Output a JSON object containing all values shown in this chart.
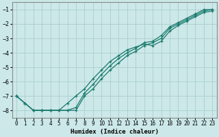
{
  "xlabel": "Humidex (Indice chaleur)",
  "bg_color": "#cce8e8",
  "grid_color": "#aacece",
  "line_color": "#1a7a6e",
  "xlim": [
    -0.5,
    23.5
  ],
  "ylim": [
    -8.5,
    -0.5
  ],
  "yticks": [
    -8,
    -7,
    -6,
    -5,
    -4,
    -3,
    -2,
    -1
  ],
  "xticks": [
    0,
    1,
    2,
    3,
    4,
    5,
    6,
    7,
    8,
    9,
    10,
    11,
    12,
    13,
    14,
    15,
    16,
    17,
    18,
    19,
    20,
    21,
    22,
    23
  ],
  "line1_x": [
    0,
    1,
    2,
    3,
    4,
    5,
    6,
    7,
    8,
    9,
    10,
    11,
    12,
    13,
    14,
    15,
    16,
    17,
    18,
    19,
    20,
    21,
    22,
    23
  ],
  "line1_y": [
    -7.0,
    -7.5,
    -8.0,
    -8.0,
    -8.0,
    -8.0,
    -8.0,
    -8.0,
    -7.0,
    -6.5,
    -5.8,
    -5.2,
    -4.7,
    -4.2,
    -3.9,
    -3.5,
    -3.3,
    -3.0,
    -2.3,
    -2.0,
    -1.7,
    -1.4,
    -1.1,
    -1.0
  ],
  "line2_x": [
    0,
    1,
    2,
    3,
    4,
    5,
    6,
    7,
    8,
    9,
    10,
    11,
    12,
    13,
    14,
    15,
    16,
    17,
    18,
    19,
    20,
    21,
    22,
    23
  ],
  "line2_y": [
    -7.0,
    -7.5,
    -8.0,
    -8.0,
    -8.0,
    -8.0,
    -8.0,
    -7.8,
    -6.8,
    -6.2,
    -5.5,
    -4.9,
    -4.4,
    -4.0,
    -3.7,
    -3.3,
    -3.2,
    -2.8,
    -2.2,
    -1.9,
    -1.6,
    -1.3,
    -1.0,
    -1.0
  ],
  "line3_x": [
    0,
    1,
    2,
    3,
    4,
    5,
    6,
    7,
    8,
    9,
    10,
    11,
    12,
    13,
    14,
    15,
    16,
    17,
    18,
    19,
    20,
    21,
    22,
    23
  ],
  "line3_y": [
    -7.0,
    -7.5,
    -8.0,
    -8.0,
    -8.0,
    -8.0,
    -7.5,
    -7.0,
    -6.5,
    -5.8,
    -5.2,
    -4.6,
    -4.2,
    -3.8,
    -3.6,
    -3.4,
    -3.5,
    -3.2,
    -2.5,
    -2.1,
    -1.8,
    -1.5,
    -1.2,
    -1.1
  ]
}
